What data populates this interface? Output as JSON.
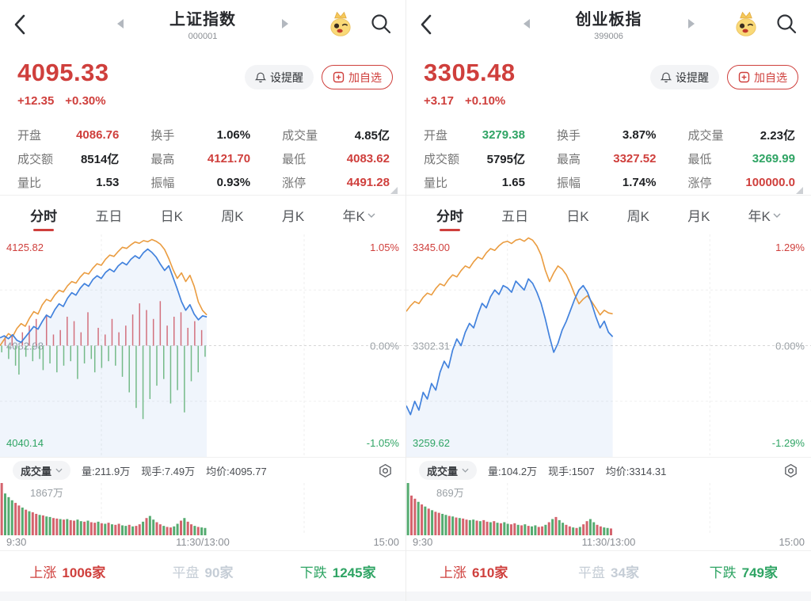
{
  "tabs": {
    "items": [
      "分时",
      "五日",
      "日K",
      "周K",
      "月K",
      "年K"
    ],
    "active": "分时"
  },
  "panels": [
    {
      "header": {
        "title": "上证指数",
        "code": "000001"
      },
      "quote": {
        "price": "4095.33",
        "change": "+12.35",
        "change_pct": "+0.30%"
      },
      "actions": {
        "alert_label": "设提醒",
        "watchlist_label": "加自选"
      },
      "stats": [
        {
          "label": "开盘",
          "value": "4086.76",
          "tone": "red"
        },
        {
          "label": "换手",
          "value": "1.06%",
          "tone": "dark"
        },
        {
          "label": "成交量",
          "value": "4.85亿",
          "tone": "dark"
        },
        {
          "label": "成交额",
          "value": "8514亿",
          "tone": "dark"
        },
        {
          "label": "最高",
          "value": "4121.70",
          "tone": "red"
        },
        {
          "label": "最低",
          "value": "4083.62",
          "tone": "red"
        },
        {
          "label": "量比",
          "value": "1.53",
          "tone": "dark"
        },
        {
          "label": "振幅",
          "value": "0.93%",
          "tone": "dark"
        },
        {
          "label": "涨停",
          "value": "4491.28",
          "tone": "red"
        }
      ],
      "chart": {
        "type": "line",
        "y_axis": {
          "high": "4125.82",
          "high_pct": "1.05%",
          "mid": "4082.98",
          "mid_pct": "0.00%",
          "low": "4040.14",
          "low_pct": "-1.05%"
        },
        "x_axis": [
          "9:30",
          "11:30/13:00",
          "15:00"
        ],
        "data_end_pct": 51,
        "price_line": [
          46.5,
          45.6,
          46.9,
          45.1,
          47.6,
          48.5,
          46.2,
          43.8,
          41.4,
          42.6,
          39.2,
          36.3,
          37.4,
          33.8,
          31.2,
          32.4,
          28.7,
          26.2,
          27.3,
          24.2,
          22.1,
          23.3,
          20.3,
          18.6,
          19.8,
          17.1,
          15.6,
          16.8,
          14.2,
          12.6,
          13.7,
          11.2,
          9.6,
          10.8,
          8.2,
          6.6,
          8.1,
          10.2,
          13.4,
          16.2,
          14.1,
          19.3,
          24.5,
          30.2,
          34.1,
          31.6,
          35.8,
          38.4,
          36.6,
          37.1
        ],
        "avg_line": [
          50.0,
          47.2,
          44.6,
          45.9,
          42.3,
          40.1,
          41.3,
          37.6,
          34.7,
          35.8,
          31.7,
          29.2,
          30.1,
          27.2,
          25.1,
          25.9,
          23.1,
          21.2,
          21.9,
          19.2,
          17.2,
          17.8,
          15.2,
          13.2,
          13.9,
          11.2,
          9.3,
          9.9,
          7.7,
          5.8,
          6.3,
          4.7,
          3.4,
          4.0,
          2.8,
          3.3,
          2.3,
          3.1,
          4.4,
          6.8,
          10.9,
          15.8,
          19.8,
          17.3,
          21.2,
          18.4,
          23.3,
          30.4,
          34.2,
          36.2
        ],
        "mid_bars": [
          -3,
          4,
          -6,
          5,
          -9,
          -13,
          6,
          -5,
          9,
          -7,
          12,
          -6,
          -11,
          14,
          -8,
          5,
          -12,
          7,
          -9,
          13,
          -7,
          11,
          -15,
          6,
          -8,
          15,
          -6,
          -12,
          8,
          -10,
          5,
          -7,
          12,
          -9,
          6,
          -14,
          9,
          -21,
          14,
          -28,
          19,
          -33,
          16,
          -24,
          12,
          -18,
          20,
          -15,
          9,
          -26,
          13,
          -20,
          15,
          -30,
          8,
          -16,
          11,
          -12,
          7,
          -5
        ],
        "volume_max_label": "1867万",
        "volume_bars": [
          100,
          80,
          73,
          67,
          62,
          57,
          53,
          49,
          46,
          44,
          41,
          39,
          38,
          36,
          35,
          33,
          32,
          31,
          30,
          31,
          29,
          28,
          30,
          27,
          26,
          28,
          25,
          24,
          26,
          23,
          22,
          24,
          21,
          20,
          22,
          19,
          18,
          20,
          17,
          18,
          21,
          26,
          33,
          37,
          30,
          25,
          21,
          18,
          16,
          15,
          17,
          22,
          28,
          33,
          26,
          21,
          18,
          16,
          15,
          14
        ],
        "volume_colors": [
          "rgggrr",
          "grgrrg",
          "rggrrg",
          "rgrrgg",
          "rgrrgr",
          "grgrrg",
          "grgrrg",
          "rggrrg",
          "rrggrg",
          "rrgrgg"
        ]
      },
      "indicator": {
        "name": "成交量",
        "vol": "量:211.9万",
        "lots": "现手:7.49万",
        "avg": "均价:4095.77"
      },
      "breadth": [
        {
          "label": "上涨",
          "value": "1006家",
          "tone": "red"
        },
        {
          "label": "平盘",
          "value": "90家",
          "tone": "flat"
        },
        {
          "label": "下跌",
          "value": "1245家",
          "tone": "green"
        }
      ]
    },
    {
      "header": {
        "title": "创业板指",
        "code": "399006"
      },
      "quote": {
        "price": "3305.48",
        "change": "+3.17",
        "change_pct": "+0.10%"
      },
      "actions": {
        "alert_label": "设提醒",
        "watchlist_label": "加自选"
      },
      "stats": [
        {
          "label": "开盘",
          "value": "3279.38",
          "tone": "green"
        },
        {
          "label": "换手",
          "value": "3.87%",
          "tone": "dark"
        },
        {
          "label": "成交量",
          "value": "2.23亿",
          "tone": "dark"
        },
        {
          "label": "成交额",
          "value": "5795亿",
          "tone": "dark"
        },
        {
          "label": "最高",
          "value": "3327.52",
          "tone": "red"
        },
        {
          "label": "最低",
          "value": "3269.99",
          "tone": "green"
        },
        {
          "label": "量比",
          "value": "1.65",
          "tone": "dark"
        },
        {
          "label": "振幅",
          "value": "1.74%",
          "tone": "dark"
        },
        {
          "label": "涨停",
          "value": "100000.0",
          "tone": "red"
        }
      ],
      "chart": {
        "type": "line",
        "y_axis": {
          "high": "3345.00",
          "high_pct": "1.29%",
          "mid": "3302.31",
          "mid_pct": "0.00%",
          "low": "3259.62",
          "low_pct": "-1.29%"
        },
        "x_axis": [
          "9:30",
          "11:30/13:00",
          "15:00"
        ],
        "data_end_pct": 51,
        "price_line": [
          77,
          81,
          75,
          79,
          71,
          74,
          67,
          70,
          62,
          57,
          60,
          52,
          47,
          50,
          44,
          40,
          42,
          36,
          31,
          33,
          28,
          25,
          27,
          23,
          24,
          26,
          21,
          23,
          25,
          20,
          22,
          26,
          31,
          38,
          46,
          53,
          49,
          43,
          39,
          34,
          29,
          25,
          23,
          26,
          31,
          37,
          42,
          39,
          44,
          46
        ],
        "avg_line": [
          34.6,
          32.1,
          30.2,
          31.1,
          28.3,
          26.4,
          27.2,
          24.3,
          22.2,
          23.1,
          20.3,
          18.2,
          19.1,
          16.3,
          14.2,
          15.1,
          12.3,
          10.2,
          11.1,
          8.3,
          6.4,
          7.2,
          5.1,
          3.6,
          3.1,
          4.1,
          2.6,
          2.1,
          3.1,
          1.6,
          2.6,
          5.2,
          9.3,
          16.1,
          21.2,
          17.3,
          14.2,
          15.6,
          18.2,
          22.3,
          27.1,
          31.2,
          29.1,
          27.6,
          30.2,
          33.1,
          36.2,
          34.1,
          35.3,
          35.7
        ],
        "mid_bars": [],
        "volume_max_label": "869万",
        "volume_bars": [
          100,
          76,
          70,
          64,
          59,
          55,
          51,
          48,
          45,
          43,
          41,
          39,
          37,
          36,
          34,
          33,
          32,
          30,
          29,
          30,
          28,
          27,
          29,
          26,
          25,
          27,
          24,
          23,
          25,
          22,
          21,
          23,
          20,
          19,
          21,
          18,
          17,
          19,
          16,
          17,
          20,
          25,
          31,
          35,
          29,
          24,
          20,
          17,
          15,
          14,
          16,
          21,
          27,
          31,
          25,
          20,
          17,
          15,
          14,
          13
        ],
        "volume_colors": [
          "grrgrg",
          "rgrrgg",
          "rgrgrr",
          "ggrgrr",
          "grgrgg",
          "rrgrgr",
          "ggrrgr",
          "grggrr",
          "grgrrg",
          "grrggr"
        ]
      },
      "indicator": {
        "name": "成交量",
        "vol": "量:104.2万",
        "lots": "现手:1507",
        "avg": "均价:3314.31"
      },
      "breadth": [
        {
          "label": "上涨",
          "value": "610家",
          "tone": "red"
        },
        {
          "label": "平盘",
          "value": "34家",
          "tone": "flat"
        },
        {
          "label": "下跌",
          "value": "749家",
          "tone": "green"
        }
      ]
    }
  ]
}
